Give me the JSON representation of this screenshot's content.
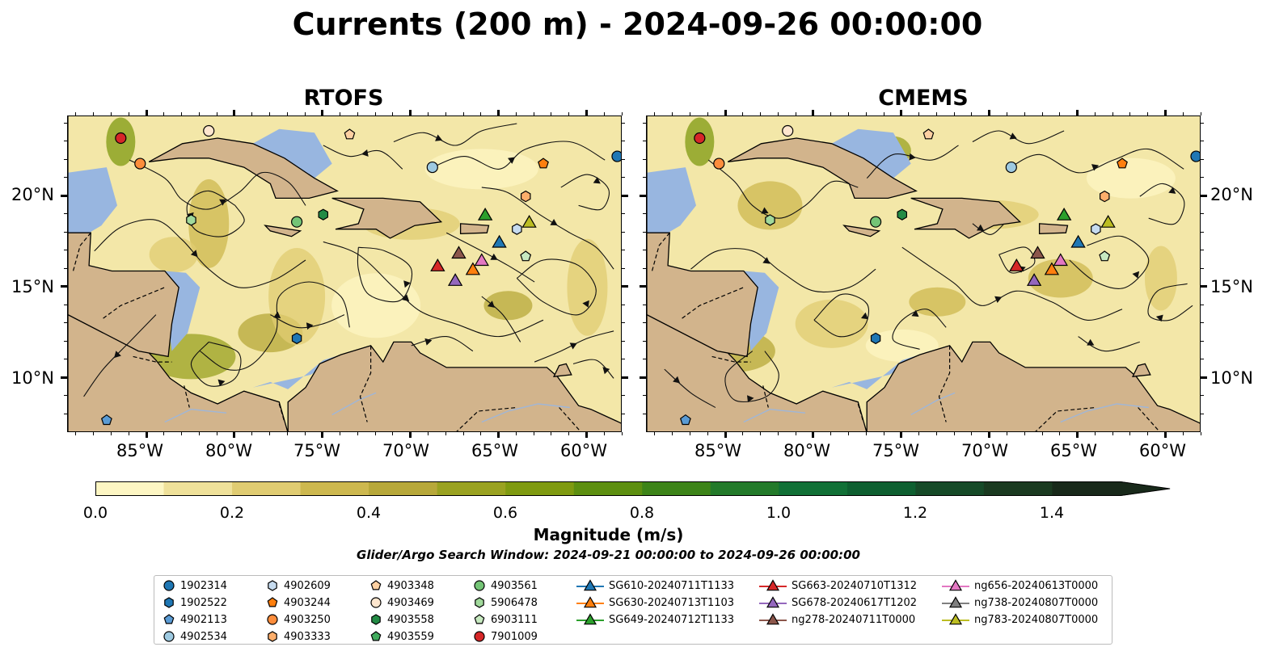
{
  "title": "Currents (200 m) - 2024-09-26 00:00:00",
  "panels": [
    {
      "title": "RTOFS"
    },
    {
      "title": "CMEMS"
    }
  ],
  "map": {
    "lon_range": [
      -89.5,
      -58
    ],
    "lat_range": [
      7,
      24.4
    ],
    "lat_ticks": [
      "20°N",
      "15°N",
      "10°N"
    ],
    "lon_ticks": [
      "85°W",
      "80°W",
      "75°W",
      "70°W",
      "65°W",
      "60°W"
    ],
    "land_color": "#d2b48c",
    "shelf_color": "#98b6e0"
  },
  "colorbar": {
    "title": "Magnitude (m/s)",
    "ticks": [
      "0.0",
      "0.2",
      "0.4",
      "0.6",
      "0.8",
      "1.0",
      "1.2",
      "1.4"
    ],
    "colors": [
      "#fdf6c3",
      "#efe19a",
      "#e0cc72",
      "#cdb84f",
      "#b7a83a",
      "#9aa221",
      "#7f9a10",
      "#5d8f10",
      "#3d8418",
      "#237a2a",
      "#117036",
      "#0e5f30",
      "#164a28",
      "#1a3a20",
      "#18291a"
    ]
  },
  "search_window": "Glider/Argo Search Window: 2024-09-21 00:00:00 to 2024-09-26 00:00:00",
  "legend": [
    {
      "label": "1902314",
      "marker": "circle",
      "color": "#1f77b4"
    },
    {
      "label": "1902522",
      "marker": "hexagon",
      "color": "#1f77b4"
    },
    {
      "label": "4902113",
      "marker": "pentagon",
      "color": "#5a9bd4"
    },
    {
      "label": "4902534",
      "marker": "circle",
      "color": "#9ecae1"
    },
    {
      "label": "4902609",
      "marker": "hexagon",
      "color": "#c6dbef"
    },
    {
      "label": "4903244",
      "marker": "pentagon",
      "color": "#ff7f0e"
    },
    {
      "label": "4903250",
      "marker": "circle",
      "color": "#fd8d3c"
    },
    {
      "label": "4903333",
      "marker": "hexagon",
      "color": "#fdae6b"
    },
    {
      "label": "4903348",
      "marker": "pentagon",
      "color": "#fdd0a2"
    },
    {
      "label": "4903469",
      "marker": "circle",
      "color": "#fee6ce"
    },
    {
      "label": "4903558",
      "marker": "hexagon",
      "color": "#238b45"
    },
    {
      "label": "4903559",
      "marker": "pentagon",
      "color": "#41ab5d"
    },
    {
      "label": "4903561",
      "marker": "circle",
      "color": "#74c476"
    },
    {
      "label": "5906478",
      "marker": "hexagon",
      "color": "#a1d99b"
    },
    {
      "label": "6903111",
      "marker": "pentagon",
      "color": "#c7e9c0"
    },
    {
      "label": "7901009",
      "marker": "circle",
      "color": "#d62728"
    },
    {
      "label": "SG610-20240711T1133",
      "marker": "triangle",
      "color": "#1f77b4"
    },
    {
      "label": "SG630-20240713T1103",
      "marker": "triangle",
      "color": "#ff7f0e"
    },
    {
      "label": "SG649-20240712T1133",
      "marker": "triangle",
      "color": "#2ca02c"
    },
    {
      "label": "SG663-20240710T1312",
      "marker": "triangle",
      "color": "#d62728"
    },
    {
      "label": "SG678-20240617T1202",
      "marker": "triangle",
      "color": "#9467bd"
    },
    {
      "label": "ng278-20240711T0000",
      "marker": "triangle",
      "color": "#8c564b"
    },
    {
      "label": "ng656-20240613T0000",
      "marker": "triangle",
      "color": "#e377c2"
    },
    {
      "label": "ng738-20240807T0000",
      "marker": "triangle",
      "color": "#7f7f7f"
    },
    {
      "label": "ng783-20240807T0000",
      "marker": "triangle",
      "color": "#bcbd22"
    }
  ],
  "positions": {
    "7901009": [
      -86.5,
      23.2
    ],
    "4903250": [
      -85.4,
      21.8
    ],
    "4903469": [
      -81.5,
      23.6
    ],
    "4903348": [
      -73.5,
      23.4
    ],
    "4902534": [
      -68.8,
      21.6
    ],
    "4903244": [
      -62.5,
      21.8
    ],
    "1902314": [
      -58.3,
      22.2
    ],
    "4903333": [
      -63.5,
      20.0
    ],
    "5906478": [
      -82.5,
      18.7
    ],
    "4903561": [
      -76.5,
      18.6
    ],
    "4903558": [
      -75.0,
      19.0
    ],
    "4902609": [
      -64.0,
      18.2
    ],
    "6903111": [
      -63.5,
      16.7
    ],
    "1902522": [
      -76.5,
      12.2
    ],
    "4902113": [
      -87.3,
      7.7
    ],
    "SG649-20240712T1133": [
      -65.8,
      19.0
    ],
    "ng783-20240807T0000": [
      -63.3,
      18.6
    ],
    "SG610-20240711T1133": [
      -65.0,
      17.5
    ],
    "ng278-20240711T0000": [
      -67.3,
      16.9
    ],
    "SG663-20240710T1312": [
      -68.5,
      16.2
    ],
    "ng656-20240613T0000": [
      -66.0,
      16.5
    ],
    "SG630-20240713T1103": [
      -66.5,
      16.0
    ],
    "SG678-20240617T1202": [
      -67.5,
      15.4
    ]
  }
}
